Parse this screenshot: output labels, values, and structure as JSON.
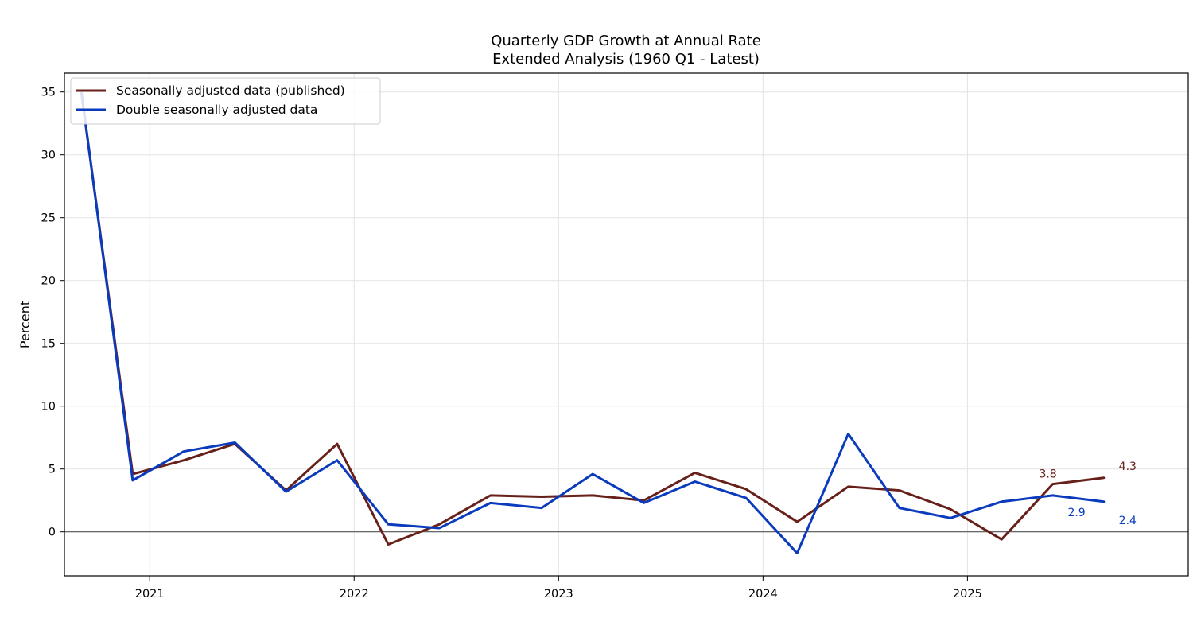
{
  "chart_data": {
    "type": "line",
    "title": "Quarterly GDP Growth at Annual Rate",
    "subtitle": "Extended Analysis (1960 Q1 - Latest)",
    "xlabel": "",
    "ylabel": "Percent",
    "x": [
      2020.667,
      2020.917,
      2021.167,
      2021.417,
      2021.667,
      2021.917,
      2022.167,
      2022.417,
      2022.667,
      2022.917,
      2023.167,
      2023.417,
      2023.667,
      2023.917,
      2024.167,
      2024.417,
      2024.667,
      2024.917,
      2025.167,
      2025.417,
      2025.667
    ],
    "xlim": [
      2020.583,
      2026.08
    ],
    "ylim": [
      -3.5,
      36.5
    ],
    "x_ticks": [
      2021,
      2022,
      2023,
      2024,
      2025
    ],
    "x_tick_labels": [
      "2021",
      "2022",
      "2023",
      "2024",
      "2025"
    ],
    "y_ticks": [
      0,
      5,
      10,
      15,
      20,
      25,
      30,
      35
    ],
    "y_tick_labels": [
      "0",
      "5",
      "10",
      "15",
      "20",
      "25",
      "30",
      "35"
    ],
    "zero_line": true,
    "grid": true,
    "legend_position": "top-left",
    "series": [
      {
        "name": "Seasonally adjusted data (published)",
        "color": "#67201a",
        "values": [
          34.8,
          4.6,
          5.7,
          7.0,
          3.3,
          7.0,
          -1.0,
          0.6,
          2.9,
          2.8,
          2.9,
          2.5,
          4.7,
          3.4,
          0.8,
          3.6,
          3.3,
          1.8,
          -0.6,
          3.8,
          4.3
        ]
      },
      {
        "name": "Double seasonally adjusted data",
        "color": "#0b3bbd",
        "values": [
          34.9,
          4.1,
          6.4,
          7.1,
          3.2,
          5.7,
          0.6,
          0.3,
          2.3,
          1.9,
          4.6,
          2.3,
          4.0,
          2.7,
          -1.7,
          7.8,
          1.9,
          1.1,
          2.4,
          2.9,
          2.4
        ]
      }
    ],
    "annotations": [
      {
        "series": 0,
        "point": 19,
        "text": "3.8",
        "color": "#67201a"
      },
      {
        "series": 0,
        "point": 20,
        "text": "4.3",
        "color": "#67201a"
      },
      {
        "series": 1,
        "point": 19,
        "text": "2.9",
        "color": "#0b3bbd"
      },
      {
        "series": 1,
        "point": 20,
        "text": "2.4",
        "color": "#0b3bbd"
      }
    ]
  }
}
